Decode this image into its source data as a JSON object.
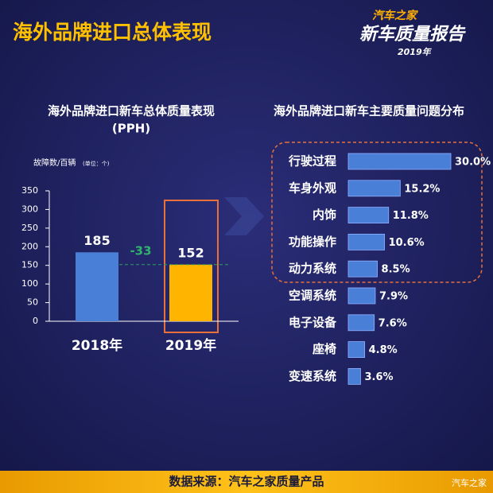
{
  "header": {
    "title": "海外品牌进口总体表现",
    "logo_brand": "汽车之家",
    "logo_title": "新车质量报告",
    "logo_year": "2019年"
  },
  "footer": {
    "source": "数据来源：汽车之家质量产品",
    "watermark": "汽车之家"
  },
  "chart_data": [
    {
      "type": "bar",
      "title": "海外品牌进口新车总体质量表现",
      "subtitle": "(PPH)",
      "y_label": "故障数/百辆",
      "y_unit": "(单位：个)",
      "categories": [
        "2018年",
        "2019年"
      ],
      "values": [
        185,
        152
      ],
      "colors": [
        "#4a7fd8",
        "#ffb400"
      ],
      "ylim": [
        0,
        350
      ],
      "yticks": [
        0,
        50,
        100,
        150,
        200,
        250,
        300,
        350
      ],
      "difference": -33
    },
    {
      "type": "hbar",
      "title": "海外品牌进口新车主要质量问题分布",
      "categories": [
        "行驶过程",
        "车身外观",
        "内饰",
        "功能操作",
        "动力系统",
        "空调系统",
        "电子设备",
        "座椅",
        "变速系统"
      ],
      "values": [
        30.0,
        15.2,
        11.8,
        10.6,
        8.5,
        7.9,
        7.6,
        4.8,
        3.6
      ],
      "value_labels": [
        "30.0%",
        "15.2%",
        "11.8%",
        "10.6%",
        "8.5%",
        "7.9%",
        "7.6%",
        "4.8%",
        "3.6%"
      ],
      "color": "#4a7fd8"
    }
  ]
}
